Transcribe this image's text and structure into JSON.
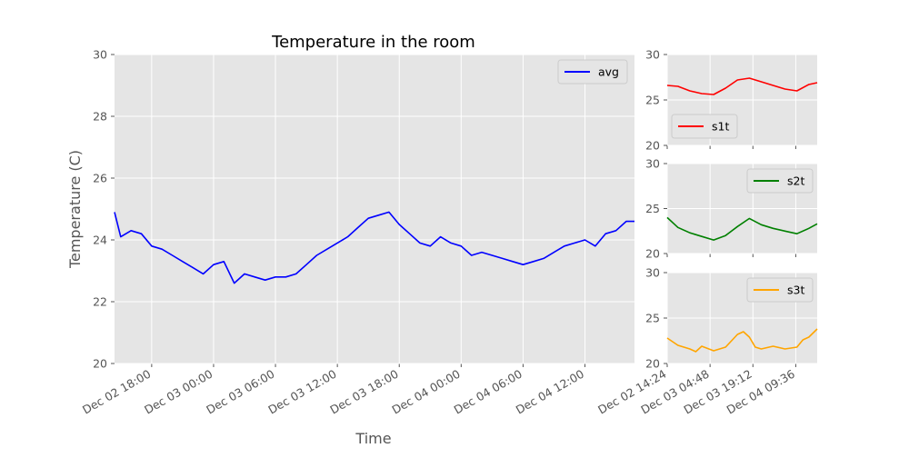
{
  "chart_data": [
    {
      "type": "line",
      "title": "Temperature in the room",
      "xlabel": "Time",
      "ylabel": "Temperature (C)",
      "ylim": [
        20,
        30
      ],
      "yticks": [
        "20",
        "22",
        "24",
        "26",
        "28",
        "30"
      ],
      "xlim": [
        "2024-12-02 14:24",
        "2024-12-04 16:48"
      ],
      "xticks": [
        "Dec 02 18:00",
        "Dec 03 00:00",
        "Dec 03 06:00",
        "Dec 03 12:00",
        "Dec 03 18:00",
        "Dec 04 00:00",
        "Dec 04 06:00",
        "Dec 04 12:00"
      ],
      "grid": true,
      "legend": "top-right",
      "series": [
        {
          "name": "avg",
          "color": "#0000ff",
          "x": [
            "2024-12-02 14:24",
            "2024-12-02 15:00",
            "2024-12-02 16:00",
            "2024-12-02 17:00",
            "2024-12-02 18:00",
            "2024-12-02 19:00",
            "2024-12-02 20:00",
            "2024-12-02 21:00",
            "2024-12-02 22:00",
            "2024-12-02 23:00",
            "2024-12-03 00:00",
            "2024-12-03 01:00",
            "2024-12-03 02:00",
            "2024-12-03 03:00",
            "2024-12-03 04:00",
            "2024-12-03 05:00",
            "2024-12-03 06:00",
            "2024-12-03 07:00",
            "2024-12-03 08:00",
            "2024-12-03 09:00",
            "2024-12-03 10:00",
            "2024-12-03 11:00",
            "2024-12-03 12:00",
            "2024-12-03 13:00",
            "2024-12-03 14:00",
            "2024-12-03 15:00",
            "2024-12-03 16:00",
            "2024-12-03 17:00",
            "2024-12-03 18:00",
            "2024-12-03 19:00",
            "2024-12-03 20:00",
            "2024-12-03 21:00",
            "2024-12-03 22:00",
            "2024-12-03 23:00",
            "2024-12-04 00:00",
            "2024-12-04 01:00",
            "2024-12-04 02:00",
            "2024-12-04 03:00",
            "2024-12-04 04:00",
            "2024-12-04 05:00",
            "2024-12-04 06:00",
            "2024-12-04 07:00",
            "2024-12-04 08:00",
            "2024-12-04 09:00",
            "2024-12-04 10:00",
            "2024-12-04 11:00",
            "2024-12-04 12:00",
            "2024-12-04 13:00",
            "2024-12-04 14:00",
            "2024-12-04 15:00",
            "2024-12-04 16:00",
            "2024-12-04 16:48"
          ],
          "values": [
            24.9,
            24.1,
            24.3,
            24.2,
            23.8,
            23.7,
            23.5,
            23.3,
            23.1,
            22.9,
            23.2,
            23.3,
            22.6,
            22.9,
            22.8,
            22.7,
            22.8,
            22.8,
            22.9,
            23.2,
            23.5,
            23.7,
            23.9,
            24.1,
            24.4,
            24.7,
            24.8,
            24.9,
            24.5,
            24.2,
            23.9,
            23.8,
            24.1,
            23.9,
            23.8,
            23.5,
            23.6,
            23.5,
            23.4,
            23.3,
            23.2,
            23.3,
            23.4,
            23.6,
            23.8,
            23.9,
            24.0,
            23.8,
            24.2,
            24.3,
            24.6,
            24.6
          ]
        }
      ]
    },
    {
      "type": "line",
      "ylim": [
        20,
        30
      ],
      "yticks": [
        "20",
        "25",
        "30"
      ],
      "legend": "bottom-left",
      "grid": true,
      "series": [
        {
          "name": "s1t",
          "color": "#ff0000",
          "x": [
            "2024-12-02 14:24",
            "2024-12-02 18:00",
            "2024-12-02 22:00",
            "2024-12-03 02:00",
            "2024-12-03 06:00",
            "2024-12-03 10:00",
            "2024-12-03 14:00",
            "2024-12-03 18:00",
            "2024-12-03 22:00",
            "2024-12-04 02:00",
            "2024-12-04 06:00",
            "2024-12-04 10:00",
            "2024-12-04 14:00",
            "2024-12-04 16:48"
          ],
          "values": [
            26.6,
            26.5,
            26.0,
            25.7,
            25.6,
            26.3,
            27.2,
            27.4,
            27.0,
            26.6,
            26.2,
            26.0,
            26.7,
            26.9
          ]
        }
      ]
    },
    {
      "type": "line",
      "ylim": [
        20,
        30
      ],
      "yticks": [
        "20",
        "25",
        "30"
      ],
      "legend": "top-right",
      "grid": true,
      "series": [
        {
          "name": "s2t",
          "color": "#008000",
          "x": [
            "2024-12-02 14:24",
            "2024-12-02 18:00",
            "2024-12-02 22:00",
            "2024-12-03 02:00",
            "2024-12-03 06:00",
            "2024-12-03 10:00",
            "2024-12-03 14:00",
            "2024-12-03 18:00",
            "2024-12-03 22:00",
            "2024-12-04 02:00",
            "2024-12-04 06:00",
            "2024-12-04 10:00",
            "2024-12-04 14:00",
            "2024-12-04 16:48"
          ],
          "values": [
            24.0,
            22.9,
            22.3,
            21.9,
            21.5,
            22.0,
            23.0,
            23.9,
            23.2,
            22.8,
            22.5,
            22.2,
            22.8,
            23.3
          ]
        }
      ]
    },
    {
      "type": "line",
      "ylim": [
        20,
        30
      ],
      "yticks": [
        "20",
        "25",
        "30"
      ],
      "xlim": [
        "2024-12-02 14:24",
        "2024-12-04 16:48"
      ],
      "xticks": [
        "Dec 02 14:24",
        "Dec 03 04:48",
        "Dec 03 19:12",
        "Dec 04 09:36"
      ],
      "legend": "top-right",
      "grid": true,
      "series": [
        {
          "name": "s3t",
          "color": "#ffa500",
          "x": [
            "2024-12-02 14:24",
            "2024-12-02 18:00",
            "2024-12-02 22:00",
            "2024-12-03 00:00",
            "2024-12-03 02:00",
            "2024-12-03 06:00",
            "2024-12-03 10:00",
            "2024-12-03 14:00",
            "2024-12-03 16:00",
            "2024-12-03 18:00",
            "2024-12-03 20:00",
            "2024-12-03 22:00",
            "2024-12-04 02:00",
            "2024-12-04 06:00",
            "2024-12-04 10:00",
            "2024-12-04 12:00",
            "2024-12-04 14:00",
            "2024-12-04 16:48"
          ],
          "values": [
            22.8,
            22.0,
            21.6,
            21.3,
            21.9,
            21.4,
            21.8,
            23.2,
            23.5,
            22.9,
            21.8,
            21.6,
            21.9,
            21.6,
            21.8,
            22.6,
            22.9,
            23.8
          ]
        }
      ]
    }
  ]
}
